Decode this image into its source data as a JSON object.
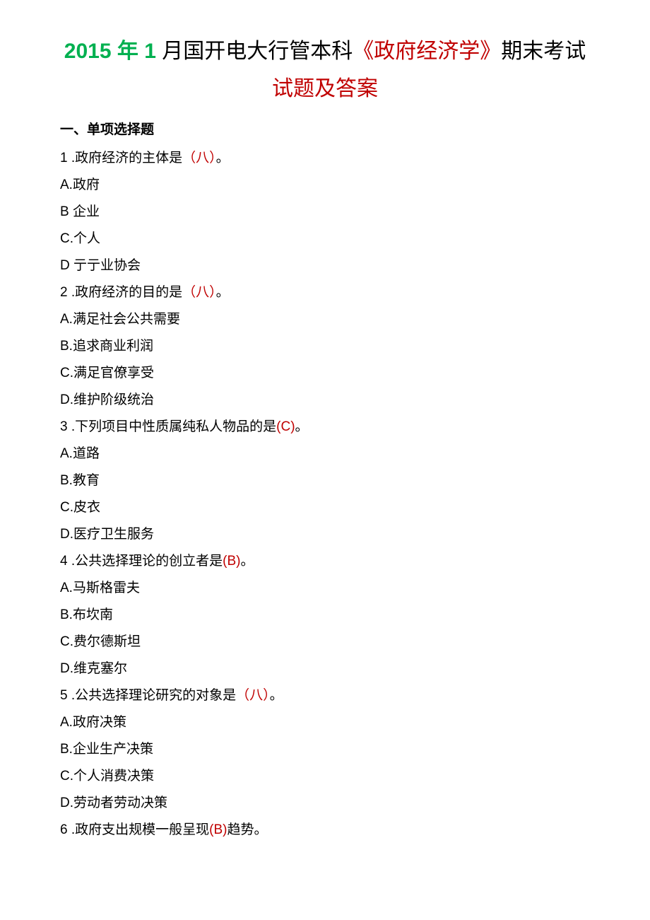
{
  "title": {
    "line1": {
      "green": "2015 年 1 ",
      "black1": "月国开电大行管本科",
      "red1": "《政府经济学》",
      "black2": "期末考试"
    },
    "line2": "试题及答案"
  },
  "section1_header": "一、单项选择题",
  "questions": [
    {
      "num": "1",
      "stem_pre": " .政府经济的主体是",
      "answer": "（八）",
      "stem_post": "。",
      "options": [
        "A.政府",
        "B 企业",
        "C.个人",
        "D 亍亍业协会"
      ]
    },
    {
      "num": "2",
      "stem_pre": " .政府经济的目的是",
      "answer": "（八）",
      "stem_post": "。",
      "options": [
        "A.满足社会公共需要",
        "B.追求商业利润",
        "C.满足官僚享受",
        "D.维护阶级统治"
      ]
    },
    {
      "num": "3",
      "stem_pre": " .下列项目中性质属纯私人物品的是",
      "answer": "(C)",
      "stem_post": "。",
      "options": [
        "A.道路",
        "B.教育",
        "C.皮衣",
        "D.医疗卫生服务"
      ]
    },
    {
      "num": "4",
      "stem_pre": " .公共选择理论的创立者是",
      "answer": "(B)",
      "stem_post": "。",
      "options": [
        "A.马斯格雷夫",
        "B.布坎南",
        "C.费尔德斯坦",
        "D.维克塞尔"
      ]
    },
    {
      "num": "5",
      "stem_pre": " .公共选择理论研究的对象是",
      "answer": "（八）",
      "stem_post": "。",
      "options": [
        "A.政府决策",
        "B.企业生产决策",
        "C.个人消费决策",
        "D.劳动者劳动决策"
      ]
    },
    {
      "num": "6",
      "stem_pre": " .政府支出规模一般呈现",
      "answer": "(B)",
      "stem_post": "趋势。",
      "options": []
    }
  ]
}
